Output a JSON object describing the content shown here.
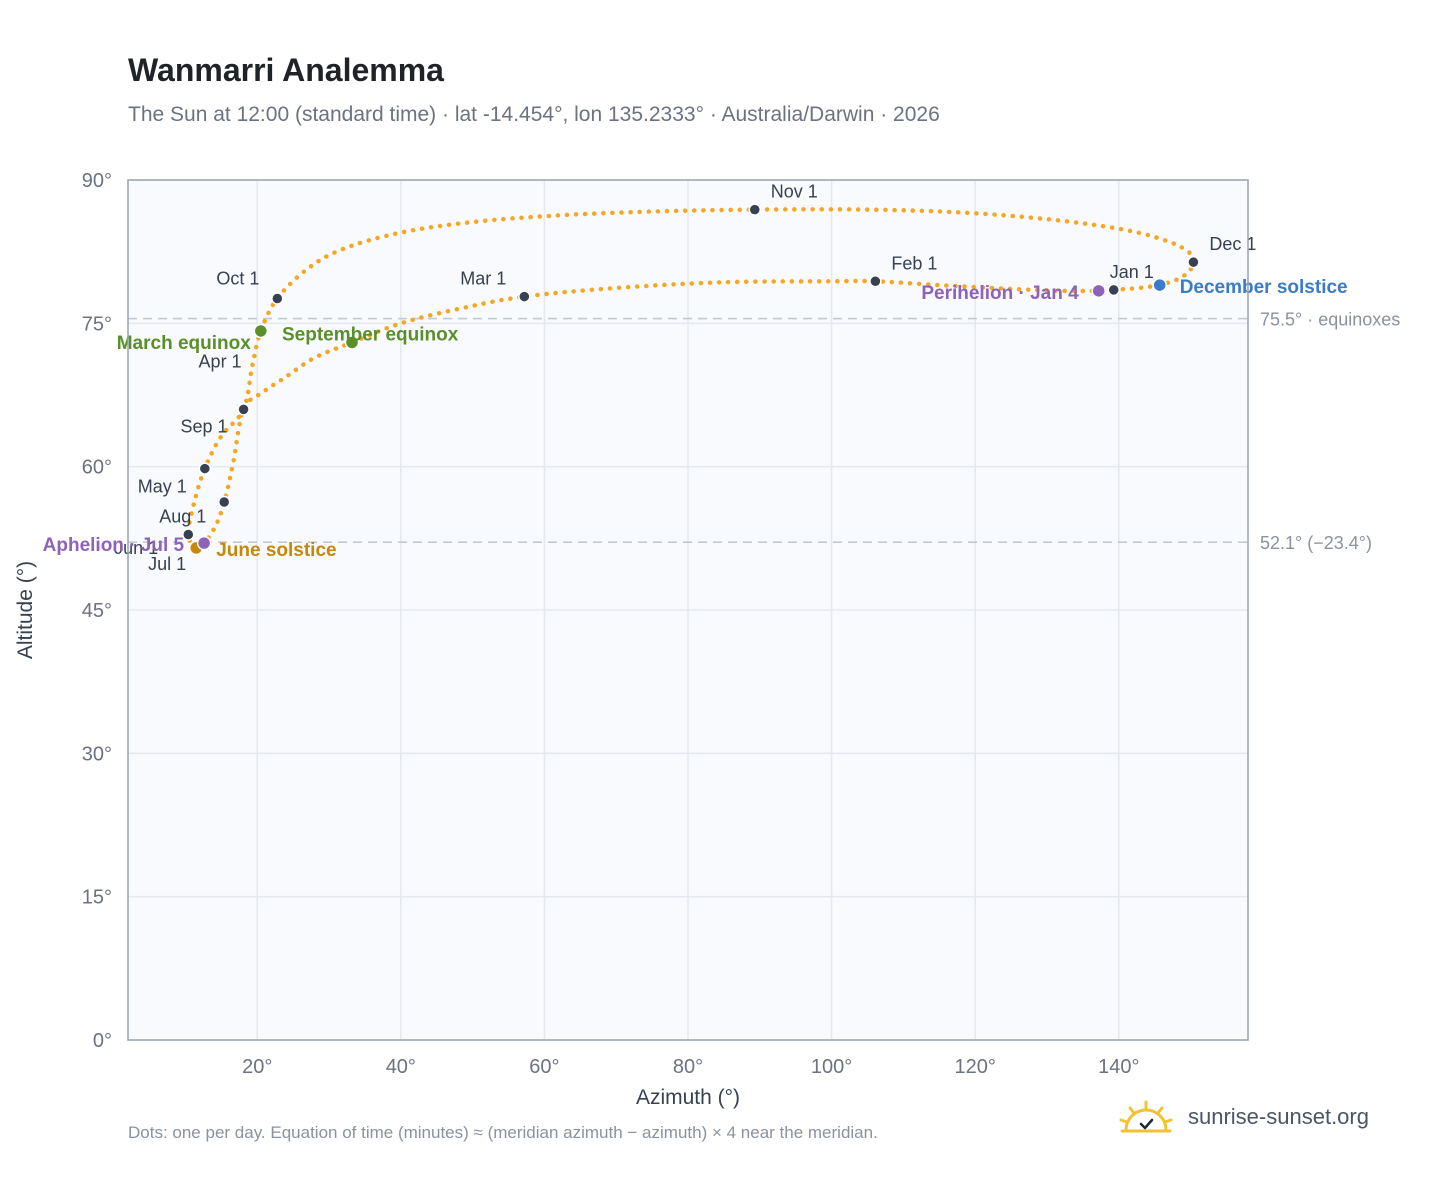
{
  "header": {
    "title": "Wanmarri Analemma",
    "subtitle": "The Sun at 12:00 (standard time) · lat -14.454°, lon 135.2333° · Australia/Darwin · 2026"
  },
  "footer": {
    "note": "Dots: one per day. Equation of time (minutes) ≈ (meridian azimuth − azimuth) × 4 near the meridian.",
    "brand": "sunrise-sunset.org"
  },
  "colors": {
    "curve": "#f5a623",
    "month_marker": "#374151",
    "equinox": "#5a8f29",
    "solstice_june": "#c8860a",
    "solstice_december": "#3b7bc8",
    "apsis": "#8e62b8",
    "grid": "#e5e9ef",
    "plot_bg": "#f8fafd",
    "axis_frame": "#9aa3b2",
    "reference_line": "#c3c9d3"
  },
  "chart_data": {
    "type": "scatter",
    "xlabel": "Azimuth (°)",
    "ylabel": "Altitude (°)",
    "xlim": [
      2,
      158
    ],
    "ylim": [
      0,
      90
    ],
    "x_ticks": [
      20,
      40,
      60,
      80,
      100,
      120,
      140
    ],
    "x_tick_labels": [
      "20°",
      "40°",
      "60°",
      "80°",
      "100°",
      "120°",
      "140°"
    ],
    "y_ticks": [
      0,
      15,
      30,
      45,
      60,
      75,
      90
    ],
    "y_tick_labels": [
      "0°",
      "15°",
      "30°",
      "45°",
      "60°",
      "75°",
      "90°"
    ],
    "grid": true,
    "reference_lines": [
      {
        "y": 75.5,
        "label": "75.5° · equinoxes"
      },
      {
        "y": 52.1,
        "label": "52.1° (−23.4°)"
      }
    ],
    "month_markers": [
      {
        "label": "Jan 1",
        "x": 139.3,
        "y": 78.5
      },
      {
        "label": "Feb 1",
        "x": 106.1,
        "y": 79.4
      },
      {
        "label": "Mar 1",
        "x": 57.2,
        "y": 77.8
      },
      {
        "label": "Apr 1",
        "x": 18.1,
        "y": 66.0
      },
      {
        "label": "May 1",
        "x": 12.7,
        "y": 59.8
      },
      {
        "label": "Jun 1",
        "x": 15.4,
        "y": 56.3
      },
      {
        "label": "Jul 1",
        "x": 11.5,
        "y": 51.5
      },
      {
        "label": "Aug 1",
        "x": 10.4,
        "y": 52.9
      },
      {
        "label": "Sep 1",
        "x": 18.1,
        "y": 66.0
      },
      {
        "label": "Oct 1",
        "x": 22.8,
        "y": 77.6
      },
      {
        "label": "Nov 1",
        "x": 89.3,
        "y": 86.9
      },
      {
        "label": "Dec 1",
        "x": 150.4,
        "y": 81.4
      }
    ],
    "events": [
      {
        "label": "March equinox",
        "x": 20.5,
        "y": 74.2,
        "kind": "equinox"
      },
      {
        "label": "September equinox",
        "x": 33.2,
        "y": 73.0,
        "kind": "equinox"
      },
      {
        "label": "June solstice",
        "x": 11.5,
        "y": 51.5,
        "kind": "solstice_june"
      },
      {
        "label": "December solstice",
        "x": 145.7,
        "y": 79.0,
        "kind": "solstice_december"
      },
      {
        "label": "Perihelion · Jan 4",
        "x": 137.2,
        "y": 78.4,
        "kind": "apsis"
      },
      {
        "label": "Aphelion · Jul 5",
        "x": 12.6,
        "y": 52.0,
        "kind": "apsis"
      }
    ],
    "path_points": [
      {
        "x": 139.3,
        "y": 78.5
      },
      {
        "x": 144.0,
        "y": 78.8
      },
      {
        "x": 147.5,
        "y": 79.4
      },
      {
        "x": 149.6,
        "y": 80.3
      },
      {
        "x": 150.4,
        "y": 81.4
      },
      {
        "x": 149.5,
        "y": 82.6
      },
      {
        "x": 146.0,
        "y": 83.8
      },
      {
        "x": 140.0,
        "y": 84.9
      },
      {
        "x": 130.0,
        "y": 85.9
      },
      {
        "x": 118.0,
        "y": 86.6
      },
      {
        "x": 105.0,
        "y": 86.9
      },
      {
        "x": 89.3,
        "y": 86.9
      },
      {
        "x": 75.0,
        "y": 86.7
      },
      {
        "x": 62.0,
        "y": 86.3
      },
      {
        "x": 50.0,
        "y": 85.6
      },
      {
        "x": 40.0,
        "y": 84.5
      },
      {
        "x": 32.0,
        "y": 82.8
      },
      {
        "x": 27.0,
        "y": 80.7
      },
      {
        "x": 22.8,
        "y": 77.6
      },
      {
        "x": 20.5,
        "y": 74.2
      },
      {
        "x": 19.3,
        "y": 70.5
      },
      {
        "x": 18.1,
        "y": 66.0
      },
      {
        "x": 15.0,
        "y": 63.2
      },
      {
        "x": 12.7,
        "y": 59.8
      },
      {
        "x": 11.2,
        "y": 56.2
      },
      {
        "x": 10.4,
        "y": 52.9
      },
      {
        "x": 11.5,
        "y": 51.5
      },
      {
        "x": 12.6,
        "y": 52.0
      },
      {
        "x": 14.2,
        "y": 53.8
      },
      {
        "x": 15.4,
        "y": 56.3
      },
      {
        "x": 16.6,
        "y": 60.2
      },
      {
        "x": 18.1,
        "y": 66.0
      },
      {
        "x": 20.8,
        "y": 67.8
      },
      {
        "x": 24.0,
        "y": 69.4
      },
      {
        "x": 28.0,
        "y": 71.4
      },
      {
        "x": 33.2,
        "y": 73.0
      },
      {
        "x": 40.0,
        "y": 75.0
      },
      {
        "x": 48.0,
        "y": 76.5
      },
      {
        "x": 57.2,
        "y": 77.8
      },
      {
        "x": 70.0,
        "y": 78.7
      },
      {
        "x": 85.0,
        "y": 79.3
      },
      {
        "x": 100.0,
        "y": 79.4
      },
      {
        "x": 106.1,
        "y": 79.4
      },
      {
        "x": 115.0,
        "y": 79.0
      },
      {
        "x": 125.0,
        "y": 78.6
      },
      {
        "x": 132.0,
        "y": 78.4
      },
      {
        "x": 137.2,
        "y": 78.4
      },
      {
        "x": 139.3,
        "y": 78.5
      }
    ]
  }
}
